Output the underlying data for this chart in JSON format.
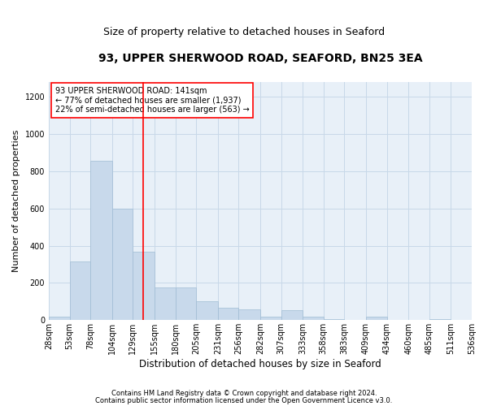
{
  "title": "93, UPPER SHERWOOD ROAD, SEAFORD, BN25 3EA",
  "subtitle": "Size of property relative to detached houses in Seaford",
  "xlabel": "Distribution of detached houses by size in Seaford",
  "ylabel": "Number of detached properties",
  "footnote1": "Contains HM Land Registry data © Crown copyright and database right 2024.",
  "footnote2": "Contains public sector information licensed under the Open Government Licence v3.0.",
  "annotation_line1": "93 UPPER SHERWOOD ROAD: 141sqm",
  "annotation_line2": "← 77% of detached houses are smaller (1,937)",
  "annotation_line3": "22% of semi-detached houses are larger (563) →",
  "property_size": 141,
  "bar_color": "#c8d9eb",
  "bar_edge_color": "#a0bcd4",
  "vline_color": "red",
  "bin_edges": [
    28,
    53,
    78,
    104,
    129,
    155,
    180,
    205,
    231,
    256,
    282,
    307,
    333,
    358,
    383,
    409,
    434,
    460,
    485,
    511,
    536
  ],
  "bar_heights": [
    20,
    315,
    855,
    600,
    370,
    175,
    175,
    100,
    65,
    60,
    20,
    55,
    20,
    5,
    0,
    20,
    0,
    0,
    5,
    0
  ],
  "ylim": [
    0,
    1280
  ],
  "yticks": [
    0,
    200,
    400,
    600,
    800,
    1000,
    1200
  ],
  "background_color": "#ffffff",
  "plot_bg_color": "#e8f0f8",
  "grid_color": "#c8d8e8",
  "title_fontsize": 10,
  "subtitle_fontsize": 9,
  "ylabel_fontsize": 8,
  "xlabel_fontsize": 8.5,
  "tick_fontsize": 7,
  "annotation_fontsize": 7,
  "footnote_fontsize": 6
}
